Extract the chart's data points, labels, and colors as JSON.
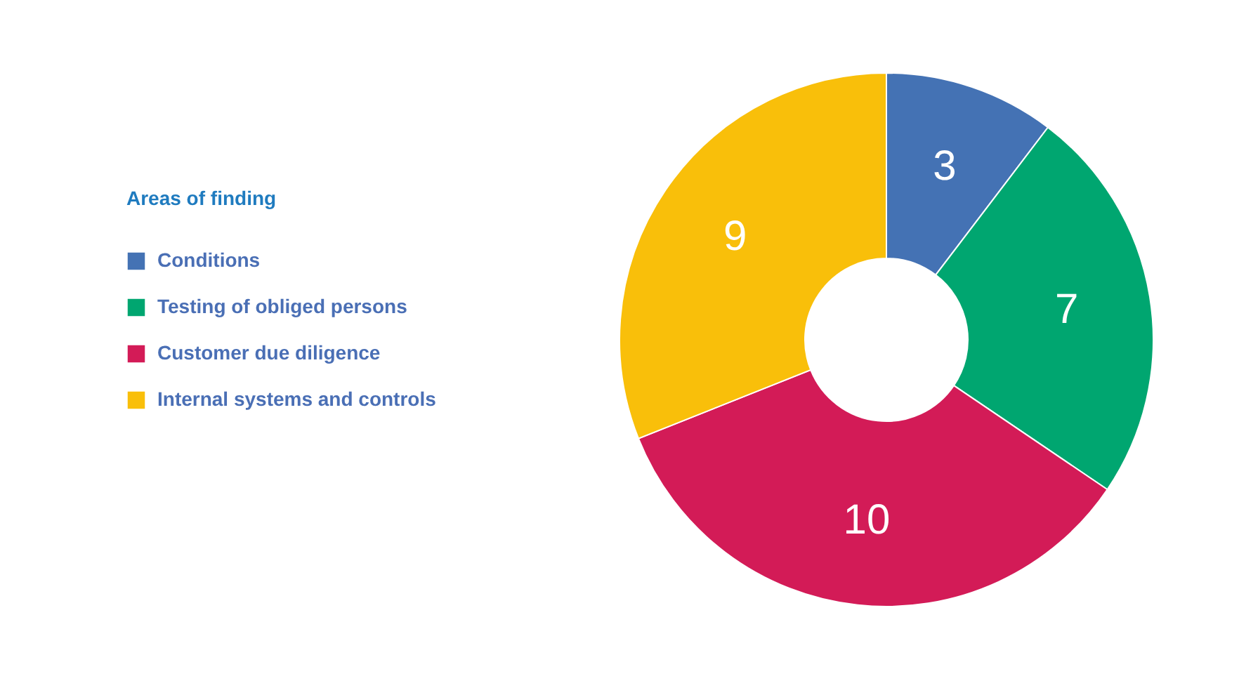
{
  "chart_data": {
    "type": "donut",
    "legend_title": "Areas of finding",
    "categories": [
      "Conditions",
      "Testing of obliged persons",
      "Customer due diligence",
      "Internal systems and controls"
    ],
    "values": [
      3,
      7,
      10,
      9
    ],
    "colors": [
      "#4472b4",
      "#00a670",
      "#d31b57",
      "#f9bf0a"
    ],
    "data_labels": true,
    "legend": "left"
  }
}
